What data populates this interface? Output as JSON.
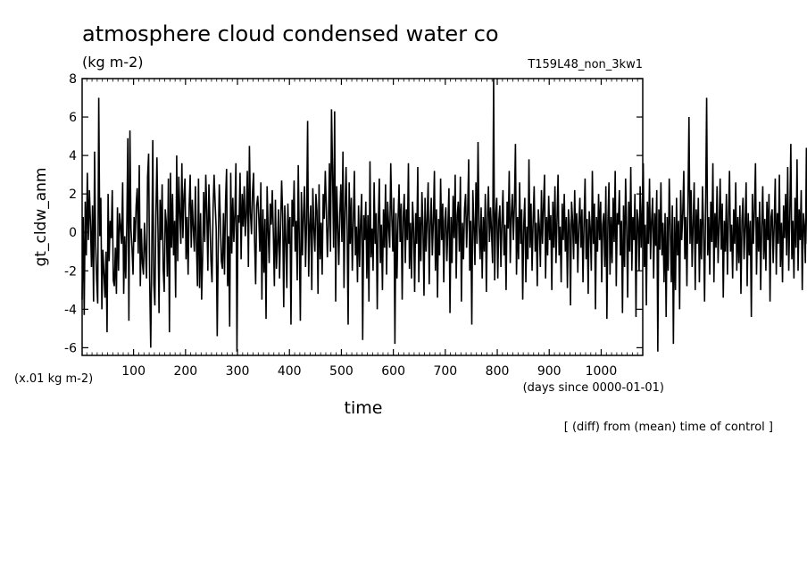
{
  "chart_data": {
    "type": "line",
    "title": "atmosphere cloud condensed water co",
    "units": "(kg m-2)",
    "experiment": "T159L48_non_3kw1",
    "ylabel": "gt_cldw_anm",
    "xlabel": "time",
    "x_units": "(days since 0000-01-01)",
    "y_units": "(x.01 kg m-2)",
    "note": "[ (diff) from (mean) time of control ]",
    "xlim": [
      1,
      1080
    ],
    "ylim": [
      -6.4,
      8
    ],
    "x_ticks": [
      100,
      200,
      300,
      400,
      500,
      600,
      700,
      800,
      900,
      1000
    ],
    "y_ticks": [
      -6,
      -4,
      -2,
      0,
      2,
      4,
      6,
      8
    ],
    "grid": false,
    "series": [
      {
        "color": "#000000",
        "x_start": 1,
        "x_step": 2,
        "values": [
          -3.5,
          0.8,
          -4.3,
          1.6,
          -1.2,
          3.1,
          -0.4,
          2.2,
          0.5,
          -1.8,
          1.4,
          -3.6,
          4.2,
          -0.6,
          -2.5,
          -3.7,
          7.0,
          -0.2,
          1.8,
          -4.0,
          -0.9,
          -2.1,
          -3.4,
          -1.0,
          -5.2,
          2.0,
          -1.5,
          0.6,
          -0.3,
          2.2,
          -2.5,
          -2.8,
          -0.8,
          -3.2,
          1.3,
          -2.0,
          1.0,
          0.3,
          -0.6,
          2.6,
          -3.2,
          -0.2,
          -2.4,
          0.4,
          4.9,
          -4.6,
          5.3,
          0.2,
          -0.8,
          -2.2,
          0.8,
          -0.5,
          1.4,
          2.3,
          -1.1,
          3.5,
          -2.8,
          0.2,
          -1.6,
          -2.2,
          0.5,
          -1.0,
          -2.4,
          2.9,
          4.1,
          -2.5,
          -6.0,
          -1.3,
          4.8,
          -2.7,
          -3.8,
          0.9,
          3.9,
          0.2,
          -4.2,
          1.7,
          -0.4,
          2.5,
          -1.9,
          -3.1,
          1.2,
          0.5,
          -2.3,
          2.8,
          -5.2,
          3.1,
          -0.8,
          2.0,
          -1.2,
          0.6,
          -3.4,
          4.0,
          -1.5,
          2.9,
          1.0,
          -0.6,
          3.6,
          -0.3,
          1.9,
          2.8,
          -1.4,
          0.8,
          -2.2,
          1.4,
          3.0,
          -0.8,
          1.7,
          0.2,
          -1.0,
          2.4,
          -0.6,
          -2.8,
          2.8,
          -2.9,
          1.0,
          -3.5,
          -1.2,
          2.1,
          -0.5,
          3.0,
          1.1,
          -2.0,
          2.5,
          0.6,
          -1.5,
          -2.6,
          1.2,
          3.0,
          1.5,
          0.2,
          -5.4,
          -0.6,
          2.5,
          0.7,
          -1.5,
          -1.9,
          1.0,
          -2.2,
          1.6,
          3.3,
          -2.8,
          -0.2,
          -4.9,
          3.1,
          -1.1,
          1.8,
          -0.5,
          1.0,
          3.6,
          -6.2,
          0.9,
          0.5,
          3.1,
          -1.4,
          2.0,
          0.3,
          2.4,
          -0.2,
          1.0,
          3.2,
          -1.8,
          4.5,
          1.0,
          -0.1,
          2.1,
          3.1,
          -0.5,
          -2.7,
          1.4,
          1.9,
          0.8,
          -1.0,
          2.6,
          -3.5,
          1.2,
          -2.1,
          0.7,
          -4.5,
          2.4,
          0.2,
          -1.6,
          1.5,
          0.4,
          2.2,
          0.0,
          -2.8,
          1.7,
          -1.9,
          -0.6,
          1.2,
          -2.4,
          0.3,
          2.7,
          0.9,
          -3.9,
          1.4,
          -0.3,
          -2.9,
          1.5,
          -0.6,
          0.8,
          -4.8,
          1.7,
          0.3,
          2.7,
          -1.0,
          0.6,
          -2.5,
          3.5,
          -0.4,
          -4.6,
          2.1,
          -1.2,
          0.9,
          2.4,
          -1.8,
          0.5,
          5.8,
          -2.3,
          0.3,
          1.4,
          -3.0,
          2.3,
          0.2,
          -1.0,
          2.0,
          1.1,
          -3.2,
          2.5,
          -1.4,
          0.5,
          -2.2,
          2.0,
          0.7,
          3.2,
          1.2,
          -1.3,
          0.4,
          3.6,
          -1.0,
          6.4,
          3.2,
          -0.8,
          6.3,
          -3.6,
          2.4,
          0.4,
          -1.7,
          1.0,
          2.5,
          -0.5,
          4.2,
          -2.9,
          1.1,
          3.4,
          0.2,
          -4.8,
          2.6,
          -0.6,
          1.8,
          -2.0,
          0.6,
          3.2,
          -1.2,
          0.3,
          -2.6,
          1.4,
          -1.8,
          0.6,
          2.0,
          -5.6,
          0.9,
          -0.4,
          1.6,
          -2.4,
          0.9,
          -3.6,
          3.7,
          -1.3,
          0.2,
          -2.0,
          2.6,
          -0.6,
          1.0,
          -4.0,
          0.5,
          2.8,
          -1.6,
          0.4,
          -3.0,
          1.2,
          -0.8,
          2.5,
          -2.2,
          1.6,
          0.3,
          -0.8,
          3.6,
          0.9,
          -1.0,
          1.8,
          -5.8,
          1.0,
          -2.4,
          0.6,
          2.5,
          -0.5,
          1.5,
          -3.5,
          0.8,
          2.0,
          -1.6,
          1.2,
          -0.4,
          3.6,
          -1.9,
          0.5,
          -2.4,
          1.6,
          0.2,
          -3.1,
          1.0,
          -0.6,
          3.4,
          -2.6,
          0.8,
          -1.5,
          2.1,
          0.3,
          -3.3,
          1.8,
          -1.0,
          0.7,
          2.6,
          -2.7,
          0.4,
          1.8,
          -1.2,
          0.6,
          3.2,
          -2.0,
          1.2,
          -3.4,
          0.7,
          -1.2,
          2.8,
          -0.4,
          1.5,
          -2.6,
          0.6,
          1.3,
          -1.5,
          0.3,
          2.3,
          -4.2,
          0.8,
          -1.6,
          1.9,
          -0.3,
          3.0,
          -2.4,
          0.9,
          1.6,
          -1.0,
          2.9,
          -3.6,
          0.5,
          -1.4,
          1.2,
          2.0,
          -0.8,
          1.0,
          3.8,
          -2.0,
          0.6,
          -4.8,
          2.2,
          0.4,
          -1.7,
          2.6,
          -0.6,
          4.7,
          0.4,
          -1.4,
          1.3,
          -2.4,
          0.8,
          -1.0,
          2.0,
          -3.1,
          0.7,
          2.4,
          -0.5,
          1.3,
          0.0,
          -1.6,
          8.0,
          -2.5,
          0.9,
          1.8,
          -2.4,
          0.6,
          1.4,
          -1.8,
          0.5,
          2.2,
          -1.2,
          0.4,
          -3.0,
          1.6,
          0.2,
          3.2,
          -1.6,
          0.9,
          2.0,
          -0.4,
          1.4,
          4.6,
          -2.2,
          0.8,
          -1.4,
          2.6,
          -0.6,
          1.2,
          -3.5,
          0.4,
          1.8,
          -2.6,
          0.3,
          -1.4,
          3.8,
          -0.8,
          1.5,
          -2.0,
          0.6,
          2.4,
          -1.0,
          0.5,
          -2.8,
          1.2,
          0.3,
          -1.8,
          2.2,
          -0.6,
          1.4,
          3.0,
          -2.4,
          0.8,
          -1.2,
          1.9,
          -0.4,
          0.9,
          -3.0,
          1.6,
          -0.8,
          2.4,
          -1.6,
          0.6,
          3.0,
          -1.2,
          0.3,
          -2.6,
          1.5,
          -0.4,
          2.0,
          -1.0,
          0.8,
          -2.9,
          1.2,
          0.4,
          -3.8,
          1.6,
          0.6,
          -1.4,
          2.2,
          -0.6,
          1.0,
          -2.1,
          0.4,
          1.8,
          -0.8,
          1.2,
          -2.6,
          0.5,
          2.8,
          -1.4,
          0.7,
          -3.2,
          1.1,
          0.2,
          -2.0,
          3.2,
          -0.6,
          1.5,
          -4.0,
          0.8,
          -1.0,
          2.0,
          -0.4,
          1.6,
          -2.6,
          0.4,
          1.0,
          -1.8,
          2.4,
          -4.5,
          0.6,
          2.6,
          -2.2,
          0.8,
          -1.6,
          1.8,
          -0.5,
          3.2,
          -2.8,
          1.0,
          0.4,
          2.2,
          -1.2,
          0.6,
          -4.2,
          1.4,
          -1.8,
          2.8,
          0.2,
          -3.4,
          1.6,
          -1.0,
          3.4,
          -2.0,
          0.8,
          -0.4,
          2.0,
          -4.4,
          1.2,
          0.6,
          -2.0,
          2.4,
          -0.8,
          1.3,
          3.6,
          -1.8,
          0.4,
          -3.8,
          1.6,
          -0.6,
          2.8,
          -1.4,
          0.6,
          1.8,
          -2.4,
          1.0,
          -0.7,
          2.2,
          -6.2,
          1.2,
          -0.9,
          2.6,
          -1.2,
          0.5,
          -2.6,
          1.0,
          -4.4,
          0.8,
          -2.0,
          2.8,
          0.4,
          -2.6,
          1.4,
          -5.8,
          0.8,
          -3.0,
          1.8,
          -1.2,
          0.6,
          -4.0,
          2.2,
          -0.4,
          1.0,
          3.2,
          -1.4,
          0.8,
          -2.8,
          1.5,
          6.0,
          -0.6,
          2.2,
          -1.8,
          0.5,
          2.6,
          -3.0,
          1.2,
          -0.6,
          1.8,
          -2.6,
          0.7,
          -1.4,
          2.4,
          0.2,
          -3.6,
          1.4,
          7.0,
          -1.2,
          0.8,
          -2.2,
          1.6,
          -0.5,
          3.6,
          -2.6,
          1.0,
          -0.8,
          2.4,
          -1.6,
          0.4,
          2.8,
          -0.9,
          1.5,
          -3.4,
          0.6,
          -1.0,
          2.0,
          -2.2,
          0.8,
          3.2,
          -1.0,
          0.4,
          -2.4,
          1.2,
          -0.6,
          2.6,
          -2.0,
          0.8,
          -1.6,
          1.4,
          -3.2,
          0.6,
          1.8,
          -1.4,
          0.3,
          2.6,
          -2.8,
          1.0,
          -1.2,
          0.6,
          -4.4,
          2.0,
          -0.6,
          1.2,
          3.6,
          -2.2,
          0.8,
          -1.0,
          1.6,
          -3.0,
          0.4,
          2.4,
          -1.4,
          0.7,
          -2.0,
          1.6,
          -0.4,
          2.0,
          -3.6,
          0.8,
          1.2,
          -1.6,
          0.4,
          2.8,
          -2.2,
          1.0,
          -0.6,
          3.0,
          -1.8,
          0.5,
          -2.6,
          1.4,
          -0.3,
          2.0,
          -1.2,
          3.4,
          -2.0,
          0.8,
          4.6,
          -1.4,
          0.6,
          -2.4,
          1.8,
          -0.8,
          3.8,
          -2.0,
          1.2,
          -0.4,
          2.2,
          -3.0,
          1.0,
          0.3,
          -1.6,
          4.4,
          -0.6,
          2.0,
          -2.4,
          1.4,
          6.4,
          -1.8,
          3.4,
          0.6,
          -2.2,
          5.6,
          -1.0,
          2.6,
          -4.2,
          2.8,
          -0.6,
          1.8,
          -2.2,
          -1.0,
          -2.4,
          -3.6,
          -1.2
        ]
      }
    ]
  }
}
